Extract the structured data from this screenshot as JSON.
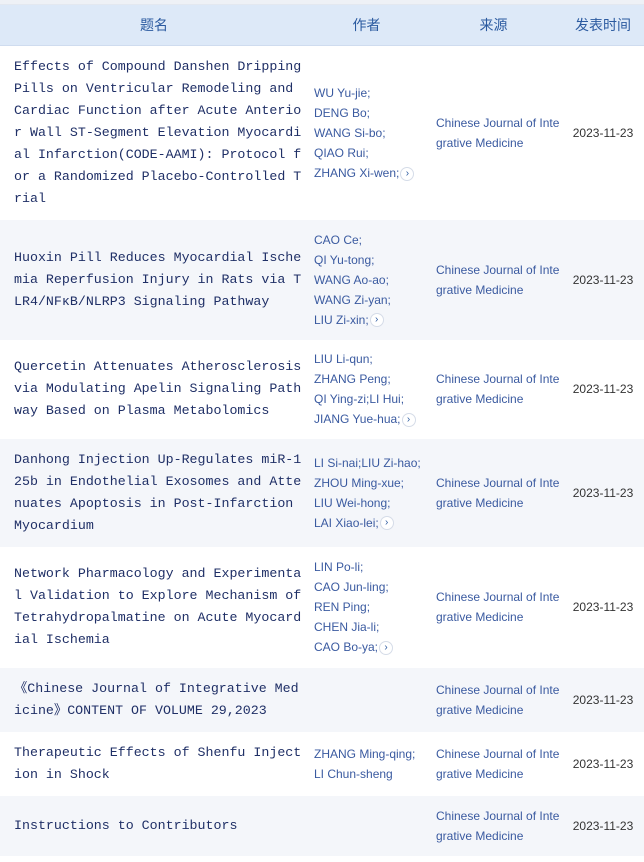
{
  "header": {
    "title": "题名",
    "authors": "作者",
    "source": "来源",
    "date": "发表时间"
  },
  "icons": {
    "more": "chevron-right-icon"
  },
  "colors": {
    "header_bg": "#dde9f8",
    "header_text": "#2b5aa0",
    "link": "#3a5aa0",
    "alt_row": "#f4f6fa"
  },
  "rows": [
    {
      "title": "Effects of Compound Danshen Dripping Pills on Ventricular Remodeling and Cardiac Function after Acute Anterior Wall ST-Segment Elevation Myocardial Infarction(CODE-AAMI): Protocol for a Randomized Placebo-Controlled Trial",
      "authors": [
        "WU Yu-jie;",
        "DENG Bo;",
        "WANG Si-bo;",
        "QIAO Rui;",
        "ZHANG Xi-wen;"
      ],
      "more": true,
      "source": "Chinese Journal of Integrative Medicine",
      "date": "2023-11-23"
    },
    {
      "title": "Huoxin Pill Reduces Myocardial Ischemia Reperfusion Injury in Rats via TLR4/NFκB/NLRP3 Signaling Pathway",
      "authors": [
        "CAO Ce;",
        "QI Yu-tong;",
        "WANG Ao-ao;",
        "WANG Zi-yan;",
        "LIU Zi-xin;"
      ],
      "more": true,
      "source": "Chinese Journal of Integrative Medicine",
      "date": "2023-11-23"
    },
    {
      "title": "Quercetin Attenuates Atherosclerosis via Modulating Apelin Signaling Pathway Based on Plasma Metabolomics",
      "authors": [
        "LIU Li-qun;",
        "ZHANG Peng;",
        "QI Ying-zi;LI Hui;",
        "JIANG Yue-hua;"
      ],
      "more": true,
      "source": "Chinese Journal of Integrative Medicine",
      "date": "2023-11-23"
    },
    {
      "title": "Danhong Injection Up-Regulates miR-125b in Endothelial Exosomes and Attenuates Apoptosis in Post-Infarction Myocardium",
      "authors": [
        "LI Si-nai;LIU Zi-hao;",
        "ZHOU Ming-xue;",
        "LIU Wei-hong;",
        "LAI Xiao-lei;"
      ],
      "more": true,
      "source": "Chinese Journal of Integrative Medicine",
      "date": "2023-11-23"
    },
    {
      "title": "Network Pharmacology and Experimental Validation to Explore Mechanism of Tetrahydropalmatine on Acute Myocardial Ischemia",
      "authors": [
        "LIN Po-li;",
        "CAO Jun-ling;",
        "REN Ping;",
        "CHEN Jia-li;",
        "CAO Bo-ya;"
      ],
      "more": true,
      "source": "Chinese Journal of Integrative Medicine",
      "date": "2023-11-23"
    },
    {
      "title": "《Chinese Journal of Integrative Medicine》CONTENT OF VOLUME 29,2023",
      "authors": [],
      "more": false,
      "source": "Chinese Journal of Integrative Medicine",
      "date": "2023-11-23"
    },
    {
      "title": "Therapeutic Effects of Shenfu Injection in Shock",
      "authors": [
        "ZHANG Ming-qing;",
        "LI Chun-sheng"
      ],
      "more": false,
      "source": "Chinese Journal of Integrative Medicine",
      "date": "2023-11-23"
    },
    {
      "title": "Instructions to Contributors",
      "authors": [],
      "more": false,
      "source": "Chinese Journal of Integrative Medicine",
      "date": "2023-11-23"
    }
  ]
}
